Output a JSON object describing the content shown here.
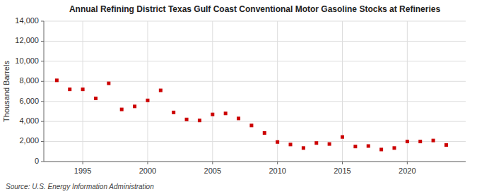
{
  "chart_data": {
    "type": "scatter",
    "title": "Annual Refining District Texas Gulf Coast Conventional Motor Gasoline Stocks at Refineries",
    "y_label": "Thousand Barrels",
    "source": "Source: U.S. Energy Information Administration",
    "color": "#cc0000",
    "marker": "square",
    "grid": true,
    "x": [
      1993,
      1994,
      1995,
      1996,
      1997,
      1998,
      1999,
      2000,
      2001,
      2002,
      2003,
      2004,
      2005,
      2006,
      2007,
      2008,
      2009,
      2010,
      2011,
      2012,
      2013,
      2014,
      2015,
      2016,
      2017,
      2018,
      2019,
      2020,
      2021,
      2022,
      2023
    ],
    "values": [
      8100,
      7200,
      7200,
      6300,
      7800,
      5200,
      5500,
      6100,
      7100,
      4900,
      4200,
      4100,
      4700,
      4800,
      4300,
      3600,
      2850,
      1950,
      1700,
      1350,
      1850,
      1750,
      2450,
      1500,
      1550,
      1200,
      1350,
      2000,
      2000,
      2100,
      1650
    ],
    "xlim": [
      1992,
      2024.5
    ],
    "xticks": [
      1995,
      2000,
      2005,
      2010,
      2015,
      2020
    ],
    "ylim": [
      0,
      14000
    ],
    "yticks": [
      0,
      {
        "value": 2000,
        "label": "2,000"
      },
      {
        "value": 4000,
        "label": "4,000"
      },
      {
        "value": 6000,
        "label": "6,000"
      },
      {
        "value": 8000,
        "label": "8,000"
      },
      {
        "value": 10000,
        "label": "10,000"
      },
      {
        "value": 12000,
        "label": "12,000"
      },
      {
        "value": 14000,
        "label": "14,000"
      }
    ]
  }
}
